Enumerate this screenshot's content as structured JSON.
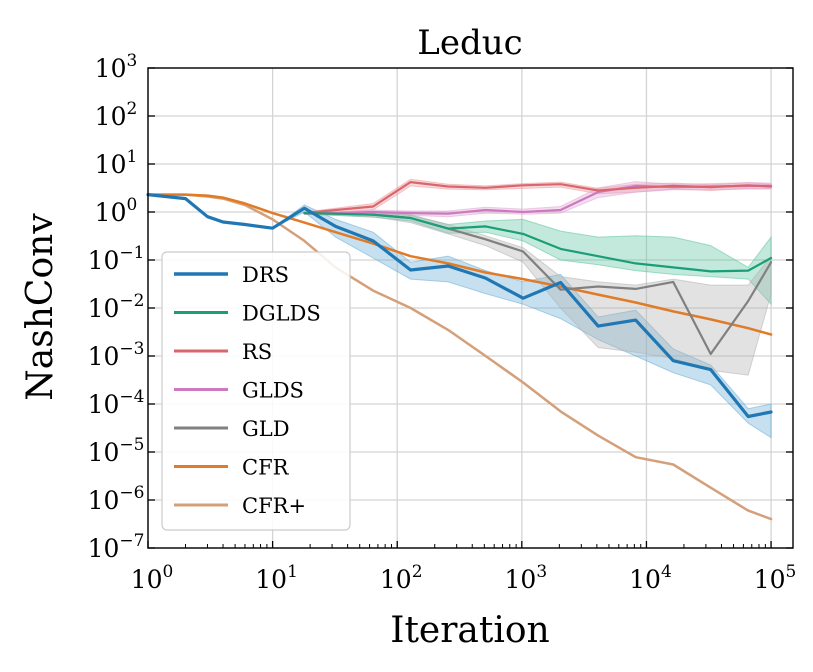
{
  "chart_data": {
    "type": "line",
    "title": "Leduc",
    "xlabel": "Iteration",
    "ylabel": "NashConv",
    "xscale": "log",
    "yscale": "log",
    "xlim": [
      1,
      150000
    ],
    "ylim": [
      1e-07,
      1000
    ],
    "grid": true,
    "legend_position": "lower-left",
    "x_ticks": [
      {
        "value": 1,
        "base": "10",
        "exp": "0"
      },
      {
        "value": 10,
        "base": "10",
        "exp": "1"
      },
      {
        "value": 100,
        "base": "10",
        "exp": "2"
      },
      {
        "value": 1000,
        "base": "10",
        "exp": "3"
      },
      {
        "value": 10000,
        "base": "10",
        "exp": "4"
      },
      {
        "value": 100000,
        "base": "10",
        "exp": "5"
      }
    ],
    "y_ticks": [
      {
        "value": 1e-07,
        "base": "10",
        "exp": "−7"
      },
      {
        "value": 1e-06,
        "base": "10",
        "exp": "−6"
      },
      {
        "value": 1e-05,
        "base": "10",
        "exp": "−5"
      },
      {
        "value": 0.0001,
        "base": "10",
        "exp": "−4"
      },
      {
        "value": 0.001,
        "base": "10",
        "exp": "−3"
      },
      {
        "value": 0.01,
        "base": "10",
        "exp": "−2"
      },
      {
        "value": 0.1,
        "base": "10",
        "exp": "−1"
      },
      {
        "value": 1,
        "base": "10",
        "exp": "0"
      },
      {
        "value": 10,
        "base": "10",
        "exp": "1"
      },
      {
        "value": 100,
        "base": "10",
        "exp": "2"
      },
      {
        "value": 1000,
        "base": "10",
        "exp": "3"
      }
    ],
    "series": [
      {
        "name": "DRS",
        "color": "#1f77b4",
        "band_color": "#6baed6",
        "width": 3.2,
        "x": [
          1,
          2,
          3,
          4,
          6,
          10,
          18,
          32,
          64,
          128,
          256,
          512,
          1024,
          2048,
          4096,
          8192,
          16384,
          32768,
          65536,
          100000
        ],
        "y": [
          2.3,
          1.9,
          0.8,
          0.62,
          0.55,
          0.46,
          1.2,
          0.5,
          0.25,
          0.062,
          0.075,
          0.042,
          0.016,
          0.034,
          0.0042,
          0.0056,
          0.0008,
          0.00052,
          5.5e-05,
          6.8e-05
        ],
        "lower": [
          2.3,
          1.9,
          0.8,
          0.62,
          0.55,
          0.46,
          1.0,
          0.3,
          0.11,
          0.04,
          0.035,
          0.02,
          0.012,
          0.006,
          0.0022,
          0.001,
          0.00045,
          0.00025,
          4e-05,
          2e-05
        ],
        "upper": [
          2.3,
          1.9,
          0.8,
          0.62,
          0.55,
          0.46,
          1.4,
          0.7,
          0.38,
          0.09,
          0.12,
          0.06,
          0.035,
          0.05,
          0.0065,
          0.009,
          0.0014,
          0.00065,
          8e-05,
          0.0001
        ]
      },
      {
        "name": "DGLDS",
        "color": "#1a9e77",
        "band_color": "#5fc4a0",
        "width": 2.2,
        "x": [
          18,
          32,
          64,
          128,
          256,
          512,
          1024,
          2048,
          4096,
          8192,
          16384,
          32768,
          65536,
          100000
        ],
        "y": [
          0.95,
          0.92,
          0.88,
          0.75,
          0.45,
          0.5,
          0.35,
          0.17,
          0.12,
          0.085,
          0.07,
          0.058,
          0.06,
          0.11
        ],
        "lower": [
          0.9,
          0.85,
          0.78,
          0.65,
          0.36,
          0.38,
          0.25,
          0.1,
          0.08,
          0.06,
          0.05,
          0.045,
          0.04,
          0.012
        ],
        "upper": [
          1.0,
          1.0,
          0.98,
          0.85,
          0.55,
          0.65,
          0.7,
          0.4,
          0.3,
          0.32,
          0.3,
          0.2,
          0.07,
          0.3
        ]
      },
      {
        "name": "RS",
        "color": "#d9666d",
        "band_color": "#ee9aa0",
        "width": 2.2,
        "x": [
          18,
          32,
          64,
          128,
          256,
          512,
          1024,
          2048,
          4096,
          8192,
          16384,
          32768,
          65536,
          100000
        ],
        "y": [
          0.95,
          1.1,
          1.3,
          4.2,
          3.4,
          3.2,
          3.6,
          3.8,
          2.8,
          3.2,
          3.5,
          3.3,
          3.6,
          3.4
        ],
        "lower": [
          0.9,
          1.0,
          1.1,
          3.5,
          3.0,
          2.9,
          3.1,
          3.3,
          2.4,
          2.6,
          3.0,
          2.8,
          3.1,
          3.1
        ],
        "upper": [
          1.0,
          1.2,
          1.5,
          4.8,
          3.8,
          3.5,
          3.9,
          4.2,
          3.1,
          3.8,
          4.0,
          3.7,
          4.1,
          3.8
        ]
      },
      {
        "name": "GLDS",
        "color": "#cc79bd",
        "band_color": "#e0a8d6",
        "width": 2.2,
        "x": [
          18,
          32,
          64,
          128,
          256,
          512,
          1024,
          2048,
          4096,
          8192,
          16384,
          32768,
          65536,
          100000
        ],
        "y": [
          0.95,
          0.95,
          1.0,
          0.95,
          0.92,
          1.1,
          1.0,
          1.1,
          2.6,
          3.5,
          3.3,
          3.4,
          3.5,
          3.5
        ],
        "lower": [
          0.9,
          0.9,
          0.9,
          0.85,
          0.8,
          0.95,
          0.9,
          0.95,
          2.0,
          2.6,
          2.9,
          2.9,
          3.0,
          3.0
        ],
        "upper": [
          1.0,
          1.0,
          1.1,
          1.05,
          1.05,
          1.25,
          1.15,
          1.3,
          3.2,
          4.3,
          3.8,
          3.9,
          4.1,
          4.0
        ]
      },
      {
        "name": "GLD",
        "color": "#808080",
        "band_color": "#b3b3b3",
        "width": 2.2,
        "x": [
          18,
          32,
          64,
          128,
          256,
          512,
          1024,
          2048,
          4096,
          8192,
          16384,
          32768,
          65536,
          100000
        ],
        "y": [
          0.95,
          0.92,
          0.88,
          0.75,
          0.45,
          0.27,
          0.15,
          0.024,
          0.028,
          0.025,
          0.035,
          0.0011,
          0.014,
          0.09
        ],
        "lower": [
          0.9,
          0.85,
          0.8,
          0.6,
          0.35,
          0.2,
          0.09,
          0.01,
          0.0015,
          0.0012,
          0.0009,
          0.0005,
          0.0004,
          0.02
        ],
        "upper": [
          1.0,
          1.0,
          0.96,
          0.88,
          0.55,
          0.32,
          0.18,
          0.045,
          0.035,
          0.03,
          0.04,
          0.03,
          0.03,
          0.12
        ]
      },
      {
        "name": "CFR",
        "color": "#e07b28",
        "width": 2.5,
        "x": [
          1,
          2,
          3,
          4,
          6,
          10,
          18,
          32,
          64,
          128,
          256,
          512,
          1024,
          2048,
          4096,
          8192,
          16384,
          32768,
          65536,
          100000
        ],
        "y": [
          2.3,
          2.3,
          2.2,
          2.0,
          1.5,
          0.95,
          0.6,
          0.38,
          0.22,
          0.12,
          0.085,
          0.055,
          0.04,
          0.028,
          0.019,
          0.013,
          0.0085,
          0.0058,
          0.0038,
          0.0028
        ]
      },
      {
        "name": "CFR+",
        "color": "#d4a07a",
        "width": 2.5,
        "x": [
          1,
          2,
          3,
          4,
          6,
          10,
          18,
          32,
          64,
          128,
          256,
          512,
          1024,
          2048,
          4096,
          8192,
          16384,
          32768,
          65536,
          100000
        ],
        "y": [
          2.3,
          2.3,
          2.1,
          1.9,
          1.4,
          0.7,
          0.25,
          0.07,
          0.023,
          0.01,
          0.0035,
          0.001,
          0.00028,
          7e-05,
          2.2e-05,
          7.8e-06,
          5.5e-06,
          1.8e-06,
          6e-07,
          4e-07
        ]
      }
    ]
  }
}
